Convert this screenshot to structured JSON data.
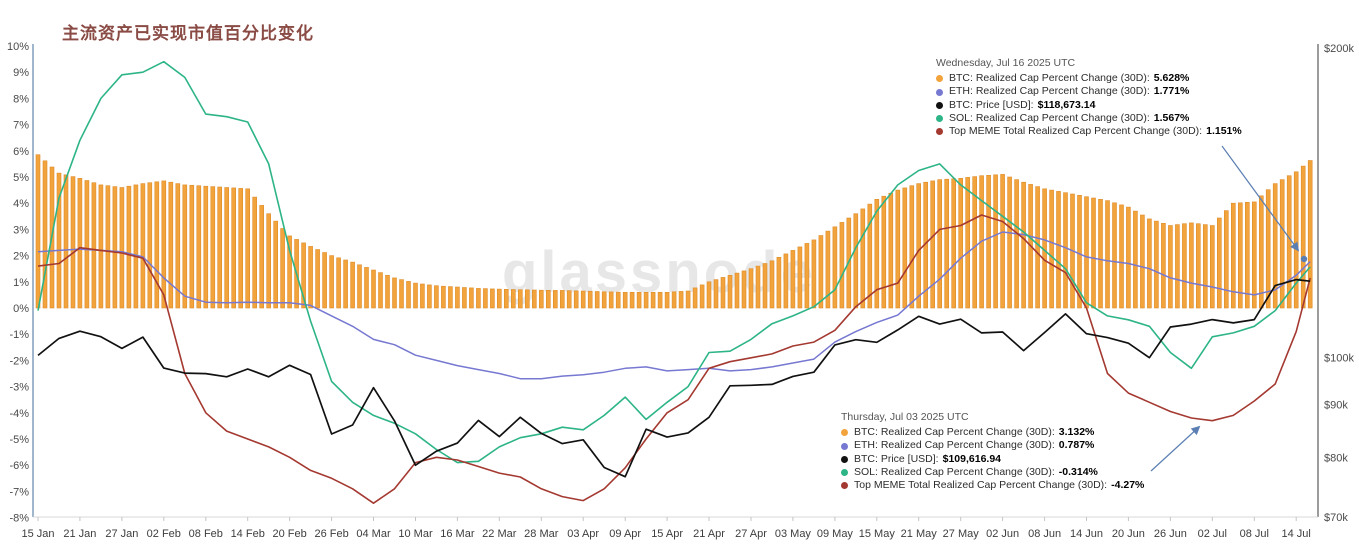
{
  "title": "主流资产已实现市值百分比变化",
  "watermark": "glassnode",
  "colors": {
    "btc_bar": "#f2a33c",
    "btc_bar_stroke": "#de8d2a",
    "eth_line": "#7678d1",
    "btc_price_line": "#111111",
    "sol_line": "#2db487",
    "meme_line": "#a43931",
    "arrow": "#5b7fb3",
    "axis_left_line": "#9fb6cc",
    "axis_right_line": "#3a3a3a",
    "axis_bottom_line": "#d8d8d8",
    "axis_text": "#4a4a4a",
    "title_text": "#8a4b45",
    "watermark_text": "#e7e7e7"
  },
  "axes": {
    "left_tick_labels": [
      "10%",
      "9%",
      "8%",
      "7%",
      "6%",
      "5%",
      "4%",
      "3%",
      "2%",
      "1%",
      "0%",
      "-1%",
      "-2%",
      "-3%",
      "-4%",
      "-5%",
      "-6%",
      "-7%",
      "-8%"
    ],
    "left_tick_values": [
      10,
      9,
      8,
      7,
      6,
      5,
      4,
      3,
      2,
      1,
      0,
      -1,
      -2,
      -3,
      -4,
      -5,
      -6,
      -7,
      -8
    ],
    "right_tick_labels": [
      "$200k",
      "$100k",
      "$90k",
      "$80k",
      "$70k"
    ],
    "right_tick_values": [
      200,
      100,
      90,
      80,
      70
    ],
    "x_tick_labels": [
      "15 Jan",
      "21 Jan",
      "27 Jan",
      "02 Feb",
      "08 Feb",
      "14 Feb",
      "20 Feb",
      "26 Feb",
      "04 Mar",
      "10 Mar",
      "16 Mar",
      "22 Mar",
      "28 Mar",
      "03 Apr",
      "09 Apr",
      "15 Apr",
      "21 Apr",
      "27 Apr",
      "03 May",
      "09 May",
      "15 May",
      "21 May",
      "27 May",
      "02 Jun",
      "08 Jun",
      "14 Jun",
      "20 Jun",
      "26 Jun",
      "02 Jul",
      "08 Jul",
      "14 Jul"
    ],
    "x_tick_days": [
      0,
      6,
      12,
      18,
      24,
      30,
      36,
      42,
      48,
      54,
      60,
      66,
      72,
      78,
      84,
      90,
      96,
      102,
      108,
      114,
      120,
      126,
      132,
      138,
      144,
      150,
      156,
      162,
      168,
      174,
      180
    ]
  },
  "tooltips": [
    {
      "date": "Wednesday, Jul 16 2025 UTC",
      "items": [
        {
          "color": "#f2a33c",
          "label": "BTC: Realized Cap Percent Change (30D):",
          "value": "5.628%"
        },
        {
          "color": "#7678d1",
          "label": "ETH: Realized Cap Percent Change (30D):",
          "value": "1.771%"
        },
        {
          "color": "#111111",
          "label": "BTC: Price [USD]:",
          "value": "$118,673.14"
        },
        {
          "color": "#2db487",
          "label": "SOL: Realized Cap Percent Change (30D):",
          "value": "1.567%"
        },
        {
          "color": "#a43931",
          "label": "Top MEME Total Realized Cap Percent Change (30D):",
          "value": "1.151%"
        }
      ]
    },
    {
      "date": "Thursday, Jul 03 2025 UTC",
      "items": [
        {
          "color": "#f2a33c",
          "label": "BTC: Realized Cap Percent Change (30D):",
          "value": "3.132%"
        },
        {
          "color": "#7678d1",
          "label": "ETH: Realized Cap Percent Change (30D):",
          "value": "0.787%"
        },
        {
          "color": "#111111",
          "label": "BTC: Price [USD]:",
          "value": "$109,616.94"
        },
        {
          "color": "#2db487",
          "label": "SOL: Realized Cap Percent Change (30D):",
          "value": "-0.314%"
        },
        {
          "color": "#a43931",
          "label": "Top MEME Total Realized Cap Percent Change (30D):",
          "value": "-4.27%"
        }
      ]
    }
  ],
  "chart_data": {
    "type": "bar+line combo",
    "title": "主流资产已实现市值百分比变化",
    "x_axis": "dates from 15 Jan 2025 to 16 Jul 2025, sampled every 3 days (day offsets in sample_days)",
    "left_axis": {
      "unit": "%",
      "range": [
        -8,
        10
      ],
      "grid": false
    },
    "right_axis": {
      "unit": "USD",
      "scale": "log",
      "ticks": [
        "$200k",
        "$100k",
        "$90k",
        "$80k",
        "$70k"
      ]
    },
    "legend_position": "tooltip overlays (top-right and bottom-center)",
    "sample_days": [
      0,
      3,
      6,
      9,
      12,
      15,
      18,
      21,
      24,
      27,
      30,
      33,
      36,
      39,
      42,
      45,
      48,
      51,
      54,
      57,
      60,
      63,
      66,
      69,
      72,
      75,
      78,
      81,
      84,
      87,
      90,
      93,
      96,
      99,
      102,
      105,
      108,
      111,
      114,
      117,
      120,
      123,
      126,
      129,
      132,
      135,
      138,
      141,
      144,
      147,
      150,
      153,
      156,
      159,
      162,
      165,
      168,
      171,
      174,
      177,
      180,
      182
    ],
    "series": [
      {
        "key": "btc_bar",
        "name": "BTC: Realized Cap Percent Change (30D)",
        "type": "bar",
        "axis": "left",
        "unit": "%",
        "values": [
          5.85,
          5.15,
          4.95,
          4.7,
          4.6,
          4.75,
          4.85,
          4.7,
          4.65,
          4.6,
          4.55,
          3.6,
          2.75,
          2.35,
          2.0,
          1.75,
          1.45,
          1.15,
          0.95,
          0.85,
          0.8,
          0.75,
          0.72,
          0.7,
          0.68,
          0.67,
          0.65,
          0.62,
          0.6,
          0.6,
          0.6,
          0.65,
          1.0,
          1.25,
          1.5,
          1.8,
          2.2,
          2.6,
          3.1,
          3.6,
          4.15,
          4.5,
          4.75,
          4.9,
          4.95,
          5.05,
          5.1,
          4.8,
          4.55,
          4.4,
          4.25,
          4.1,
          3.85,
          3.4,
          3.15,
          3.25,
          3.15,
          4.0,
          4.05,
          4.75,
          5.2,
          5.63
        ]
      },
      {
        "key": "eth",
        "name": "ETH: Realized Cap Percent Change (30D)",
        "type": "line",
        "axis": "left",
        "unit": "%",
        "values": [
          2.15,
          2.2,
          2.25,
          2.2,
          2.15,
          1.95,
          1.15,
          0.45,
          0.22,
          0.2,
          0.22,
          0.2,
          0.2,
          0.1,
          -0.3,
          -0.7,
          -1.2,
          -1.4,
          -1.8,
          -2.0,
          -2.2,
          -2.35,
          -2.5,
          -2.7,
          -2.7,
          -2.6,
          -2.55,
          -2.45,
          -2.3,
          -2.25,
          -2.4,
          -2.35,
          -2.3,
          -2.4,
          -2.35,
          -2.25,
          -2.1,
          -1.95,
          -1.3,
          -0.9,
          -0.55,
          -0.27,
          0.45,
          1.1,
          1.9,
          2.55,
          2.9,
          2.8,
          2.6,
          2.3,
          1.95,
          1.8,
          1.7,
          1.5,
          1.15,
          0.95,
          0.8,
          0.62,
          0.5,
          0.69,
          1.25,
          1.77
        ]
      },
      {
        "key": "btc_price",
        "name": "BTC: Price [USD]",
        "type": "line",
        "axis": "right",
        "unit": "USD (thousands)",
        "values": [
          100.5,
          104.4,
          106.1,
          104.8,
          102.1,
          104.7,
          97.7,
          96.6,
          96.5,
          95.8,
          97.5,
          95.8,
          98.3,
          96.3,
          84.3,
          86.0,
          93.5,
          86.8,
          78.6,
          81.1,
          82.6,
          86.9,
          83.8,
          87.5,
          84.4,
          82.5,
          83.2,
          78.2,
          76.6,
          85.2,
          83.7,
          84.5,
          87.5,
          93.9,
          94.0,
          94.2,
          95.9,
          96.8,
          102.9,
          104.1,
          103.5,
          106.4,
          109.7,
          107.8,
          109.0,
          105.7,
          105.9,
          101.6,
          105.8,
          110.3,
          105.5,
          104.6,
          103.3,
          100.0,
          107.1,
          107.8,
          108.9,
          108.1,
          108.9,
          117.5,
          119.1,
          118.67
        ]
      },
      {
        "key": "sol",
        "name": "SOL: Realized Cap Percent Change (30D)",
        "type": "line",
        "axis": "left",
        "unit": "%",
        "values": [
          -0.1,
          4.2,
          6.4,
          8.0,
          8.9,
          9.0,
          9.4,
          8.8,
          7.4,
          7.3,
          7.1,
          5.5,
          2.2,
          -0.5,
          -2.8,
          -3.6,
          -4.1,
          -4.4,
          -4.8,
          -5.4,
          -5.9,
          -5.85,
          -5.3,
          -4.95,
          -4.8,
          -4.55,
          -4.65,
          -4.1,
          -3.4,
          -4.25,
          -3.6,
          -3.0,
          -1.7,
          -1.65,
          -1.2,
          -0.6,
          -0.3,
          0.05,
          0.7,
          2.3,
          3.7,
          4.7,
          5.25,
          5.5,
          4.7,
          4.1,
          3.5,
          2.9,
          2.2,
          1.5,
          0.2,
          -0.3,
          -0.45,
          -0.7,
          -1.7,
          -2.3,
          -1.1,
          -0.95,
          -0.7,
          -0.1,
          0.95,
          1.57
        ]
      },
      {
        "key": "meme",
        "name": "Top MEME Total Realized Cap Percent Change (30D)",
        "type": "line",
        "axis": "left",
        "unit": "%",
        "values": [
          1.6,
          1.7,
          2.3,
          2.2,
          2.1,
          1.9,
          0.5,
          -2.5,
          -4.0,
          -4.7,
          -5.0,
          -5.3,
          -5.7,
          -6.2,
          -6.5,
          -6.9,
          -7.45,
          -6.9,
          -5.9,
          -5.7,
          -5.8,
          -6.05,
          -6.3,
          -6.45,
          -6.9,
          -7.2,
          -7.35,
          -6.9,
          -6.1,
          -5.0,
          -4.0,
          -3.5,
          -2.3,
          -2.05,
          -1.9,
          -1.75,
          -1.45,
          -1.3,
          -0.85,
          0.05,
          0.7,
          0.95,
          2.2,
          3.0,
          3.15,
          3.55,
          3.3,
          2.65,
          1.82,
          1.35,
          0.0,
          -2.5,
          -3.25,
          -3.6,
          -3.95,
          -4.2,
          -4.3,
          -4.1,
          -3.55,
          -2.9,
          -0.9,
          1.15
        ]
      }
    ]
  }
}
